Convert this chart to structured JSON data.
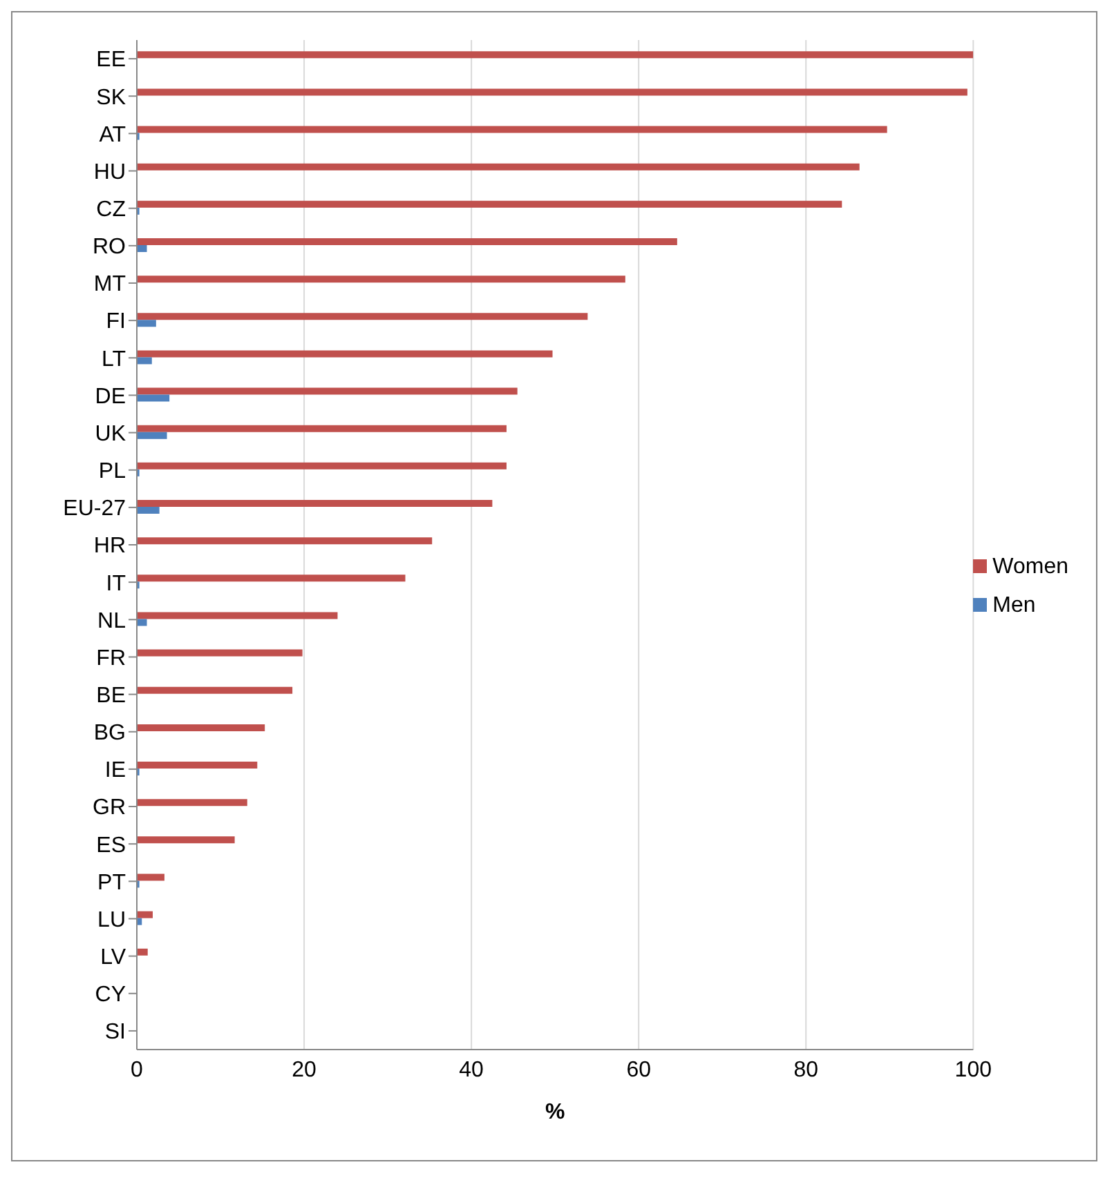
{
  "chart_data": {
    "type": "bar",
    "orientation": "horizontal",
    "xlabel": "%",
    "categories": [
      "EE",
      "SK",
      "AT",
      "HU",
      "CZ",
      "RO",
      "MT",
      "FI",
      "LT",
      "DE",
      "UK",
      "PL",
      "EU-27",
      "HR",
      "IT",
      "NL",
      "FR",
      "BE",
      "BG",
      "IE",
      "GR",
      "ES",
      "PT",
      "LU",
      "LV",
      "CY",
      "SI"
    ],
    "series": [
      {
        "name": "Women",
        "color": "#c0504d",
        "values": [
          100,
          99.3,
          89.7,
          86.4,
          84.3,
          64.6,
          58.4,
          53.9,
          49.7,
          45.5,
          44.2,
          44.2,
          42.5,
          35.3,
          32.1,
          24.0,
          19.8,
          18.6,
          15.3,
          14.4,
          13.2,
          11.7,
          3.3,
          1.9,
          1.3,
          0,
          0
        ]
      },
      {
        "name": "Men",
        "color": "#4f81bd",
        "values": [
          0,
          0,
          0.3,
          0,
          0.3,
          1.2,
          0,
          2.3,
          1.8,
          3.9,
          3.6,
          0.3,
          2.7,
          0,
          0.3,
          1.2,
          0,
          0,
          0,
          0.3,
          0,
          0,
          0.3,
          0.6,
          0,
          0,
          0
        ]
      }
    ],
    "xlim": [
      0,
      100
    ],
    "xticks": [
      0,
      20,
      40,
      60,
      80,
      100
    ],
    "grid": "x",
    "legend": "right"
  }
}
